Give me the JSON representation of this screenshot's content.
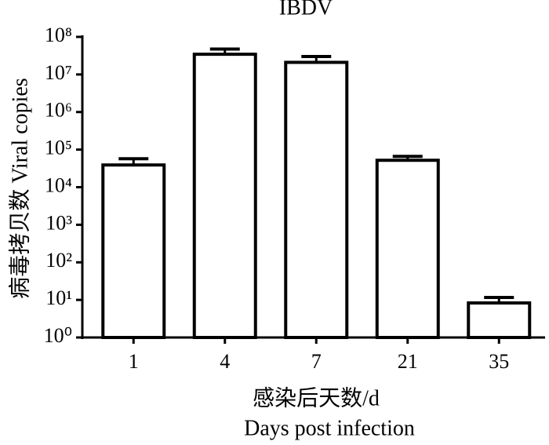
{
  "chart_data": {
    "type": "bar",
    "title": "IBDV",
    "y_label": "病毒拷贝数 Viral copies",
    "x_label": [
      "感染后天数/d",
      "Days post infection"
    ],
    "categories": [
      "1",
      "4",
      "7",
      "21",
      "35"
    ],
    "values": [
      39000,
      34500000,
      21000000,
      52000,
      8.3
    ],
    "errors": [
      18000,
      13000000,
      9000000,
      14000,
      3.3
    ],
    "color": "#ffffff",
    "log_y": true,
    "ylim": [
      1,
      100000000
    ],
    "yticks": [
      {
        "value": 1,
        "label": "10⁰"
      },
      {
        "value": 10,
        "label": "10¹"
      },
      {
        "value": 100,
        "label": "10²"
      },
      {
        "value": 1000,
        "label": "10³"
      },
      {
        "value": 10000,
        "label": "10⁴"
      },
      {
        "value": 100000,
        "label": "10⁵"
      },
      {
        "value": 1000000,
        "label": "10⁶"
      },
      {
        "value": 10000000,
        "label": "10⁷"
      },
      {
        "value": 100000000,
        "label": "10⁸"
      }
    ],
    "grid": false
  }
}
